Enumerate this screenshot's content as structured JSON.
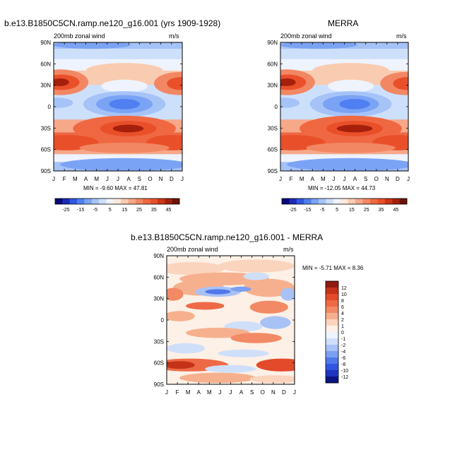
{
  "colors": {
    "scale_full": [
      "#08087a",
      "#1c2ab8",
      "#2e57e0",
      "#4f7ff0",
      "#7ba3f5",
      "#a6c3f8",
      "#cde0fb",
      "#eef3fd",
      "#fde8dc",
      "#f9cbb0",
      "#f6a889",
      "#f28763",
      "#ef6842",
      "#e9502a",
      "#cc3518",
      "#a5200c",
      "#6d1208"
    ],
    "scale_diff": [
      "#0c1480",
      "#1d35c0",
      "#3055e0",
      "#5078ea",
      "#7d9ff1",
      "#a8c2f6",
      "#cfdffa",
      "#eef3fd",
      "#fdf0e6",
      "#fbd4bd",
      "#f6b08e",
      "#f28a66",
      "#ee6a46",
      "#e34a2a",
      "#c33219",
      "#8f1a0e"
    ]
  },
  "panels": [
    {
      "id": "model",
      "title": "b.e13.B1850C5CN.ramp.ne120_g16.001 (yrs 1909-1928)",
      "left_label": "200mb zonal wind",
      "right_label": "m/s",
      "stats": "MIN = -9.60  MAX = 47.81"
    },
    {
      "id": "merra",
      "title": "MERRA",
      "left_label": "200mb zonal wind",
      "right_label": "m/s",
      "stats": "MIN = -12.05  MAX = 44.73"
    },
    {
      "id": "diff",
      "title": "b.e13.B1850C5CN.ramp.ne120_g16.001 - MERRA",
      "left_label": "200mb zonal wind",
      "right_label": "m/s",
      "stats": "MIN =  -5.71  MAX =   8.36"
    }
  ],
  "chart_data": [
    {
      "type": "heatmap",
      "title": "b.e13.B1850C5CN.ramp.ne120_g16.001 (yrs 1909-1928)",
      "variable": "200mb zonal wind",
      "units": "m/s",
      "x_ticks": [
        "J",
        "F",
        "M",
        "A",
        "M",
        "J",
        "J",
        "A",
        "S",
        "O",
        "N",
        "D",
        "J"
      ],
      "y_ticks": [
        "90N",
        "60N",
        "30N",
        "0",
        "30S",
        "60S",
        "90S"
      ],
      "min": -9.6,
      "max": 47.81,
      "colorbar_labels": [
        "-25",
        "-15",
        "-5",
        "5",
        "15",
        "25",
        "35",
        "45"
      ]
    },
    {
      "type": "heatmap",
      "title": "MERRA",
      "variable": "200mb zonal wind",
      "units": "m/s",
      "x_ticks": [
        "J",
        "F",
        "M",
        "A",
        "M",
        "J",
        "J",
        "A",
        "S",
        "O",
        "N",
        "D",
        "J"
      ],
      "y_ticks": [
        "90N",
        "60N",
        "30N",
        "0",
        "30S",
        "60S",
        "90S"
      ],
      "min": -12.05,
      "max": 44.73,
      "colorbar_labels": [
        "-25",
        "-15",
        "-5",
        "5",
        "15",
        "25",
        "35",
        "45"
      ]
    },
    {
      "type": "heatmap",
      "title": "b.e13.B1850C5CN.ramp.ne120_g16.001 - MERRA",
      "variable": "200mb zonal wind",
      "units": "m/s",
      "x_ticks": [
        "J",
        "F",
        "M",
        "A",
        "M",
        "J",
        "J",
        "A",
        "S",
        "O",
        "N",
        "D",
        "J"
      ],
      "y_ticks": [
        "90N",
        "60N",
        "30N",
        "0",
        "30S",
        "60S",
        "90S"
      ],
      "min": -5.71,
      "max": 8.36,
      "colorbar_labels": [
        "12",
        "10",
        "8",
        "6",
        "4",
        "2",
        "1",
        "0",
        "-1",
        "-2",
        "-4",
        "-6",
        "-8",
        "-10",
        "-12"
      ]
    }
  ]
}
